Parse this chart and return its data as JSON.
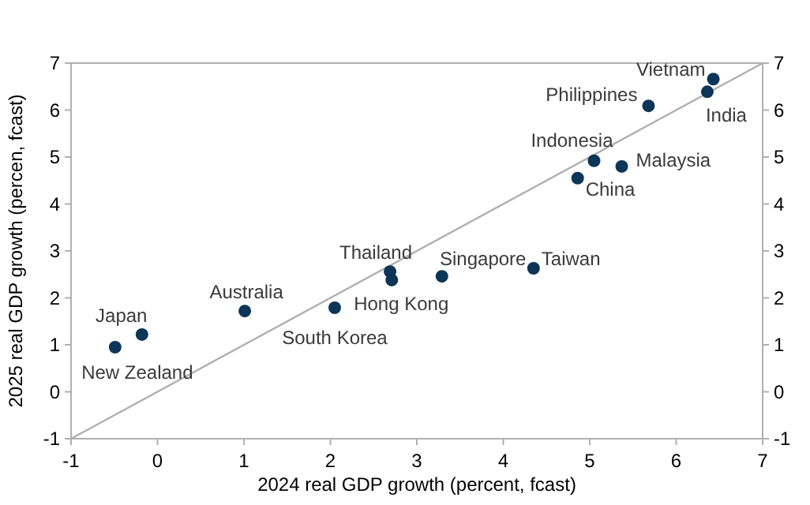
{
  "chart_data": {
    "type": "scatter",
    "xlabel": "2024 real GDP growth (percent, fcast)",
    "ylabel": "2025 real GDP growth (percen, fcast)",
    "grid": false,
    "xlim": [
      -1,
      7
    ],
    "xticks": [
      -1,
      0,
      1,
      2,
      3,
      4,
      5,
      6,
      7
    ],
    "ylim": [
      -1,
      7
    ],
    "yticks": [
      -1,
      0,
      1,
      2,
      3,
      4,
      5,
      6,
      7
    ],
    "y2lim": [
      -1,
      7
    ],
    "y2ticks": [
      -1,
      0,
      1,
      2,
      3,
      4,
      5,
      6,
      7
    ],
    "series": [
      {
        "marker": "circle",
        "color": "#0d3557",
        "x": [
          -0.49,
          -0.18,
          1.01,
          2.05,
          2.69,
          2.71,
          3.29,
          4.35,
          4.86,
          5.05,
          5.37,
          5.68,
          6.36,
          6.43
        ],
        "values": [
          0.95,
          1.22,
          1.72,
          1.79,
          2.56,
          2.38,
          2.46,
          2.63,
          4.55,
          4.92,
          4.8,
          6.09,
          6.39,
          6.66
        ]
      },
      {
        "type": "line",
        "marker": "none",
        "color": "#b0b0b0",
        "x": [
          -1,
          7
        ],
        "values": [
          -1,
          7
        ]
      }
    ],
    "annotations": [
      {
        "text": "New Zealand",
        "x": -0.49,
        "y": 0.95
      },
      {
        "text": "Japan",
        "x": -0.18,
        "y": 1.22
      },
      {
        "text": "Australia",
        "x": 1.01,
        "y": 1.72
      },
      {
        "text": "South Korea",
        "x": 2.05,
        "y": 1.79
      },
      {
        "text": "Thailand",
        "x": 2.69,
        "y": 2.56
      },
      {
        "text": "Hong Kong",
        "x": 2.71,
        "y": 2.38
      },
      {
        "text": "Singapore",
        "x": 3.29,
        "y": 2.46
      },
      {
        "text": "Taiwan",
        "x": 4.35,
        "y": 2.63
      },
      {
        "text": "China",
        "x": 4.86,
        "y": 4.55
      },
      {
        "text": "Indonesia",
        "x": 5.05,
        "y": 4.92
      },
      {
        "text": "Malaysia",
        "x": 5.37,
        "y": 4.8
      },
      {
        "text": "Philippines",
        "x": 5.68,
        "y": 6.09
      },
      {
        "text": "India",
        "x": 6.36,
        "y": 6.39
      },
      {
        "text": "Vietnam",
        "x": 6.43,
        "y": 6.66
      }
    ]
  }
}
